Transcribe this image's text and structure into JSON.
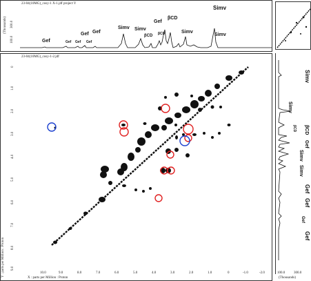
{
  "top_panel": {
    "title": "23-04(10MG)_cosy-1 X-1.jdf project Y",
    "yaxis_label": "(Thousands)",
    "ytick_a": "100.0",
    "ytick_b": "300.0",
    "peaks": [
      {
        "label": "Gef"
      },
      {
        "label": "Gef"
      },
      {
        "label": "Gef"
      },
      {
        "label": "Gef"
      },
      {
        "label": "Gef"
      },
      {
        "label": "Gef"
      },
      {
        "label": "Simv"
      },
      {
        "label": "Simv"
      },
      {
        "label": "βCD"
      },
      {
        "label": "Gef"
      },
      {
        "label": "βCD"
      },
      {
        "label": "βCD"
      },
      {
        "label": "Simv"
      },
      {
        "label": "Simv"
      },
      {
        "label": "Simv"
      }
    ]
  },
  "main_panel": {
    "title": "23-04(10MG)_cosy-1-2.jdf",
    "y_axis_label": "Y : parts per Million : Proton",
    "x_axis_label": "X : parts per Million : Proton",
    "x_ticks": [
      "10.0",
      "9.0",
      "8.0",
      "7.0",
      "6.0",
      "5.0",
      "4.0",
      "3.0",
      "2.0",
      "1.0",
      "0",
      "-1.0",
      "-2.0"
    ],
    "y_ticks": [
      "0",
      "1.0",
      "2.0",
      "3.0",
      "4.0",
      "5.0",
      "6.0",
      "7.0",
      "8.0",
      "9.0"
    ]
  },
  "right_panel": {
    "x_ticks": [
      "100.0",
      "300.0"
    ],
    "x_label": "(Thousands)",
    "peaks": [
      {
        "label": "Simv"
      },
      {
        "label": "Simv"
      },
      {
        "label": "βCD"
      },
      {
        "label": "βCD"
      },
      {
        "label": "Gef"
      },
      {
        "label": "Simv"
      },
      {
        "label": "Simv"
      },
      {
        "label": "Gef"
      },
      {
        "label": "Gef"
      },
      {
        "label": "Gef"
      },
      {
        "label": "Gef"
      }
    ]
  },
  "markers": {
    "red_circle_color": "#e02020",
    "blue_circle_color": "#1a3fcf",
    "red_count": 9,
    "blue_count": 2
  },
  "colors": {
    "panel_border": "#333333",
    "contour": "#111111",
    "background": "#ffffff"
  }
}
